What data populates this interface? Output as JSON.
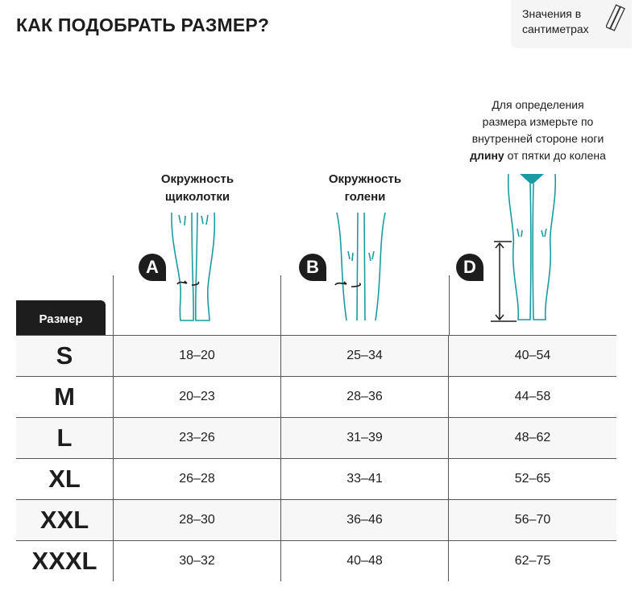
{
  "title": "КАК ПОДОБРАТЬ РАЗМЕР?",
  "units_note": {
    "line1": "Значения в",
    "line2": "сантиметрах",
    "icon": "ruler-icon"
  },
  "accent_color": "#1a9ba1",
  "columns": [
    {
      "badge": "A",
      "line1": "Окружность",
      "line2": "щиколотки"
    },
    {
      "badge": "B",
      "line1": "Окружность",
      "line2": "голени"
    },
    {
      "badge": "D",
      "note_lines": [
        "Для определения",
        "размера измерьте по",
        "внутренней стороне ноги"
      ],
      "note_bold": "длину",
      "note_rest": " от пятки до колена"
    }
  ],
  "size_header": "Размер",
  "rows": [
    {
      "size": "S",
      "values": [
        "18–20",
        "25–34",
        "40–54"
      ]
    },
    {
      "size": "M",
      "values": [
        "20–23",
        "28–36",
        "44–58"
      ]
    },
    {
      "size": "L",
      "values": [
        "23–26",
        "31–39",
        "48–62"
      ]
    },
    {
      "size": "XL",
      "values": [
        "26–28",
        "33–41",
        "52–65"
      ]
    },
    {
      "size": "XXL",
      "values": [
        "28–30",
        "36–46",
        "56–70"
      ]
    },
    {
      "size": "XXXL",
      "values": [
        "30–32",
        "40–48",
        "62–75"
      ]
    }
  ]
}
